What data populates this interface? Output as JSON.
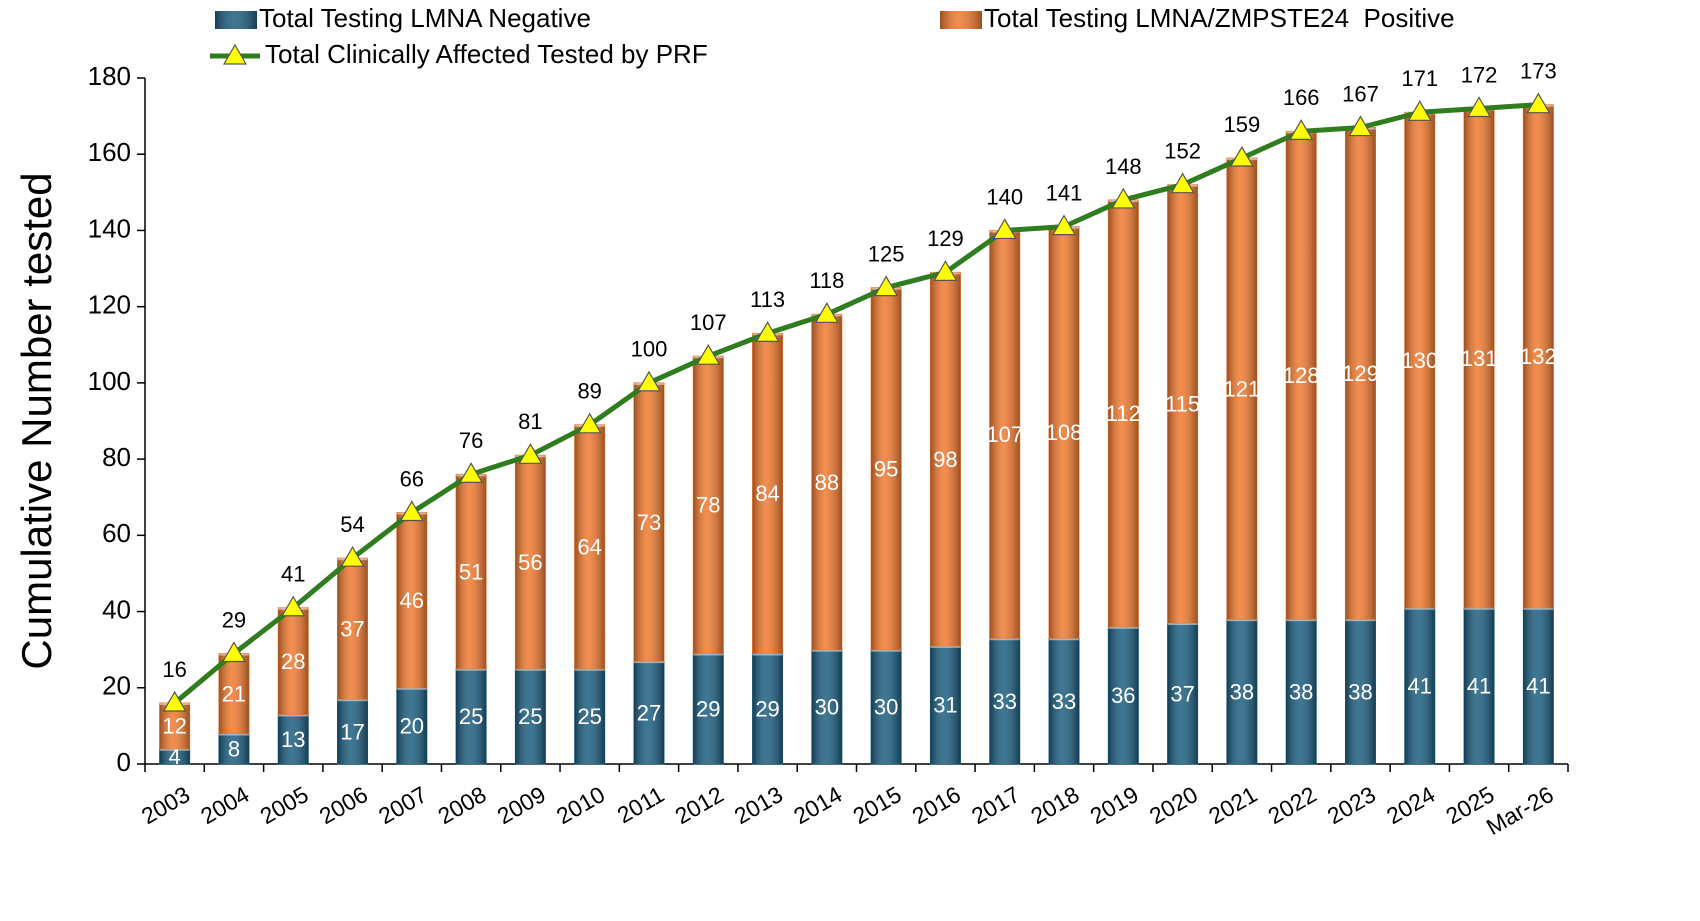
{
  "chart_data": {
    "type": "stacked-bar-line",
    "y_label": "Cumulative Number tested",
    "categories": [
      "2003",
      "2004",
      "2005",
      "2006",
      "2007",
      "2008",
      "2009",
      "2010",
      "2011",
      "2012",
      "2013",
      "2014",
      "2015",
      "2016",
      "2017",
      "2018",
      "2019",
      "2020",
      "2021",
      "2022",
      "2023",
      "2024",
      "2025",
      "Mar-26"
    ],
    "series": [
      {
        "name": "Total Testing LMNA Negative",
        "kind": "bar",
        "color": "#1d5e80",
        "values": [
          4,
          8,
          13,
          17,
          20,
          25,
          25,
          25,
          27,
          29,
          29,
          30,
          30,
          31,
          33,
          33,
          36,
          37,
          38,
          38,
          38,
          41,
          41,
          41
        ]
      },
      {
        "name": "Total Testing LMNA/ZMPSTE24  Positive",
        "kind": "bar",
        "color": "#f07a30",
        "values": [
          12,
          21,
          28,
          37,
          46,
          51,
          56,
          64,
          73,
          78,
          84,
          88,
          95,
          98,
          107,
          108,
          112,
          115,
          121,
          128,
          129,
          130,
          131,
          132
        ]
      },
      {
        "name": "Total Clinically Affected Tested by PRF",
        "kind": "line",
        "color": "#2f7d1e",
        "marker_color": "#ffff00",
        "values": [
          16,
          29,
          41,
          54,
          66,
          76,
          81,
          89,
          100,
          107,
          113,
          118,
          125,
          129,
          140,
          141,
          148,
          152,
          159,
          166,
          167,
          171,
          172,
          173
        ]
      }
    ],
    "ylim": [
      0,
      180
    ],
    "yticks": [
      0,
      20,
      40,
      60,
      80,
      100,
      120,
      140,
      160,
      180
    ],
    "grid": false
  }
}
